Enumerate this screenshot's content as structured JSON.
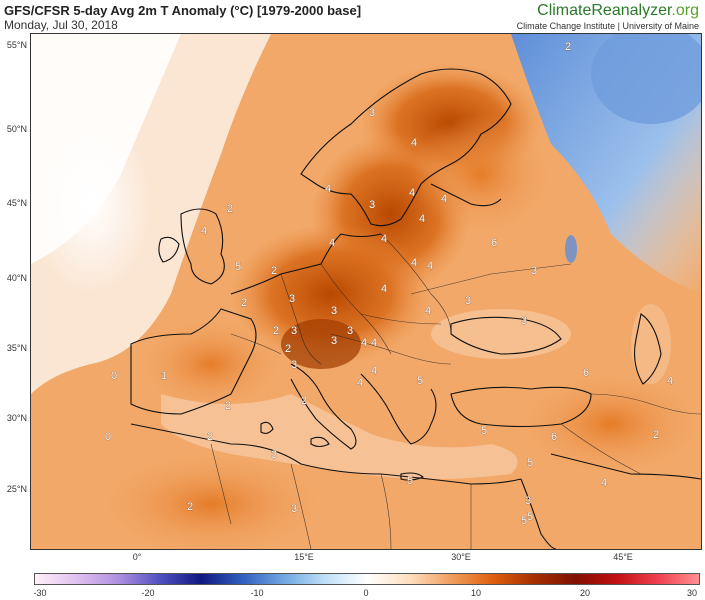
{
  "header": {
    "title": "GFS/CFSR 5-day Avg 2m T Anomaly (°C) [1979-2000 base]",
    "date": "Monday, Jul 30, 2018"
  },
  "brand": {
    "name_part1": "ClimateReanalyzer",
    "name_part2": ".org",
    "subtitle": "Climate Change Institute | University of Maine"
  },
  "map": {
    "lat_labels": [
      "55°N",
      "50°N",
      "45°N",
      "40°N",
      "35°N",
      "30°N",
      "25°N"
    ],
    "lon_labels": [
      "0°",
      "15°E",
      "30°E",
      "45°E"
    ],
    "contour_values": [
      "2",
      "3",
      "4",
      "4",
      "3",
      "4",
      "4",
      "4",
      "2",
      "4",
      "4",
      "4",
      "6",
      "4",
      "3",
      "4",
      "5",
      "2",
      "3",
      "4",
      "2",
      "3",
      "3",
      "4",
      "3",
      "4",
      "3",
      "2",
      "3",
      "2",
      "3",
      "4",
      "4",
      "1",
      "0",
      "2",
      "2",
      "4",
      "5",
      "5",
      "6",
      "4",
      "0",
      "2",
      "3",
      "5",
      "5",
      "3",
      "4",
      "5",
      "2",
      "3",
      "5",
      "3",
      "6",
      "2"
    ]
  },
  "colorbar": {
    "ticks": [
      "-30",
      "-20",
      "-10",
      "0",
      "10",
      "20",
      "30"
    ],
    "colors": [
      "#fff0f8",
      "#e0c0f0",
      "#b090e0",
      "#5050c0",
      "#101880",
      "#3060c0",
      "#70a8e0",
      "#c0e0f8",
      "#ffffff",
      "#ffe0c0",
      "#f0a060",
      "#e06010",
      "#a83000",
      "#801000",
      "#c01010",
      "#f04050",
      "#ff9090"
    ]
  }
}
